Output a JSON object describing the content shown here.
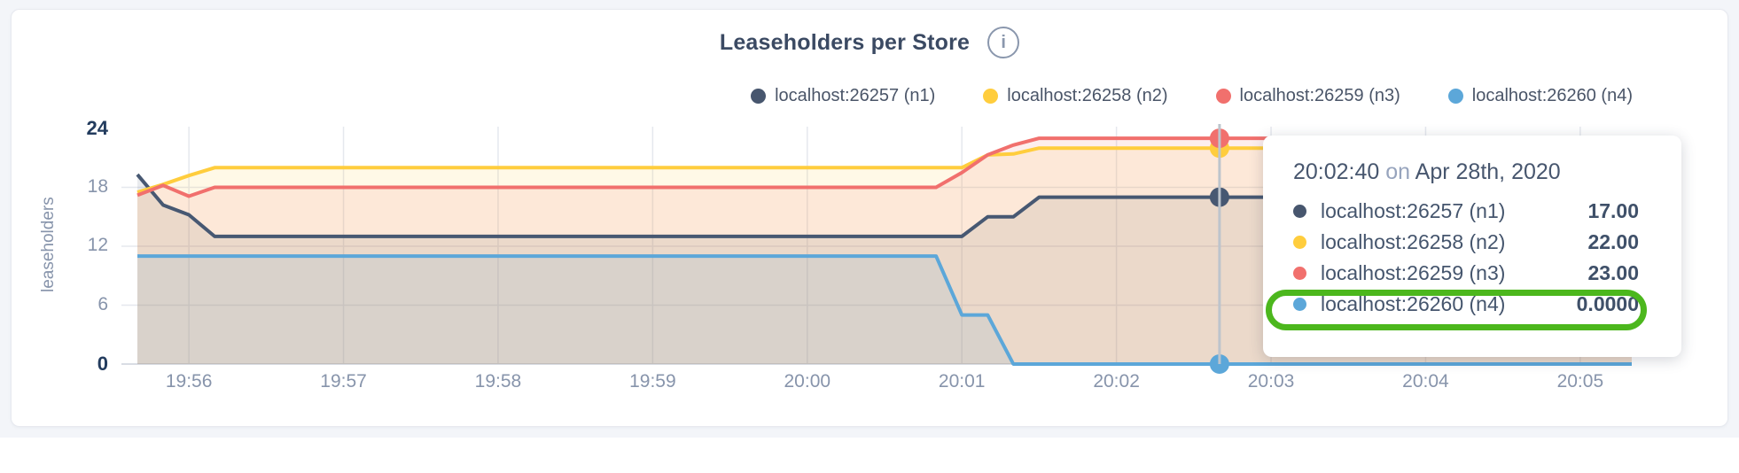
{
  "panel": {
    "title": "Leaseholders per Store",
    "info_icon": "i"
  },
  "legend": {
    "items": [
      {
        "label": "localhost:26257 (n1)",
        "color": "#47566e"
      },
      {
        "label": "localhost:26258 (n2)",
        "color": "#ffcd3d"
      },
      {
        "label": "localhost:26259 (n3)",
        "color": "#f1706d"
      },
      {
        "label": "localhost:26260 (n4)",
        "color": "#5ca7d9"
      }
    ]
  },
  "chart_data": {
    "type": "area",
    "title": "Leaseholders per Store",
    "xlabel": "",
    "ylabel": "leaseholders",
    "ylim": [
      0,
      24
    ],
    "y_ticks": [
      0,
      6,
      12,
      18,
      24
    ],
    "x_ticks": [
      "19:56",
      "19:57",
      "19:58",
      "19:59",
      "20:00",
      "20:01",
      "20:02",
      "20:03",
      "20:04",
      "20:05"
    ],
    "x_domain": [
      "19:55:40",
      "20:05:20"
    ],
    "grid": true,
    "legend_position": "top-right",
    "series": [
      {
        "name": "localhost:26257 (n1)",
        "color": "#475872",
        "points": [
          [
            "19:55:40",
            19.3
          ],
          [
            "19:55:50",
            16.2
          ],
          [
            "19:56:00",
            15.2
          ],
          [
            "19:56:10",
            13
          ],
          [
            "20:01:00",
            13
          ],
          [
            "20:01:10",
            15
          ],
          [
            "20:01:20",
            15
          ],
          [
            "20:01:30",
            17
          ],
          [
            "20:05:20",
            17
          ]
        ]
      },
      {
        "name": "localhost:26258 (n2)",
        "color": "#ffcd3d",
        "points": [
          [
            "19:55:40",
            17.5
          ],
          [
            "19:55:50",
            18.3
          ],
          [
            "19:56:00",
            19.2
          ],
          [
            "19:56:10",
            20
          ],
          [
            "20:01:00",
            20
          ],
          [
            "20:01:10",
            21.3
          ],
          [
            "20:01:20",
            21.4
          ],
          [
            "20:01:30",
            22
          ],
          [
            "20:05:20",
            22
          ]
        ]
      },
      {
        "name": "localhost:26259 (n3)",
        "color": "#f1706d",
        "points": [
          [
            "19:55:40",
            17.2
          ],
          [
            "19:55:50",
            18.2
          ],
          [
            "19:56:00",
            17.1
          ],
          [
            "19:56:10",
            18
          ],
          [
            "20:00:50",
            18
          ],
          [
            "20:01:00",
            19.5
          ],
          [
            "20:01:10",
            21.3
          ],
          [
            "20:01:20",
            22.3
          ],
          [
            "20:01:30",
            23
          ],
          [
            "20:05:20",
            23
          ]
        ]
      },
      {
        "name": "localhost:26260 (n4)",
        "color": "#5ca7d9",
        "points": [
          [
            "19:55:40",
            11
          ],
          [
            "20:00:50",
            11
          ],
          [
            "20:01:00",
            5
          ],
          [
            "20:01:10",
            5
          ],
          [
            "20:01:20",
            0
          ],
          [
            "20:05:20",
            0
          ]
        ]
      }
    ],
    "hover": {
      "time": "20:02:40",
      "values": [
        17,
        22,
        23,
        0
      ],
      "line_color": "#bdc4cc"
    }
  },
  "tooltip": {
    "time": "20:02:40",
    "connector": "on",
    "date": "Apr 28th, 2020",
    "rows": [
      {
        "label": "localhost:26257 (n1)",
        "value": "17.00",
        "color": "#47566e"
      },
      {
        "label": "localhost:26258 (n2)",
        "value": "22.00",
        "color": "#ffcd3d"
      },
      {
        "label": "localhost:26259 (n3)",
        "value": "23.00",
        "color": "#f1706d"
      },
      {
        "label": "localhost:26260 (n4)",
        "value": "0.0000",
        "color": "#5ca7d9"
      }
    ],
    "highlight_row": 3,
    "highlight_color": "#4cb71d"
  },
  "colors": {
    "background": "#f3f5f9",
    "gridline": "#e5e8ee",
    "axis_line": "#d9dde4",
    "tick_muted": "#8794ab",
    "tick_dark": "#233c5e"
  }
}
